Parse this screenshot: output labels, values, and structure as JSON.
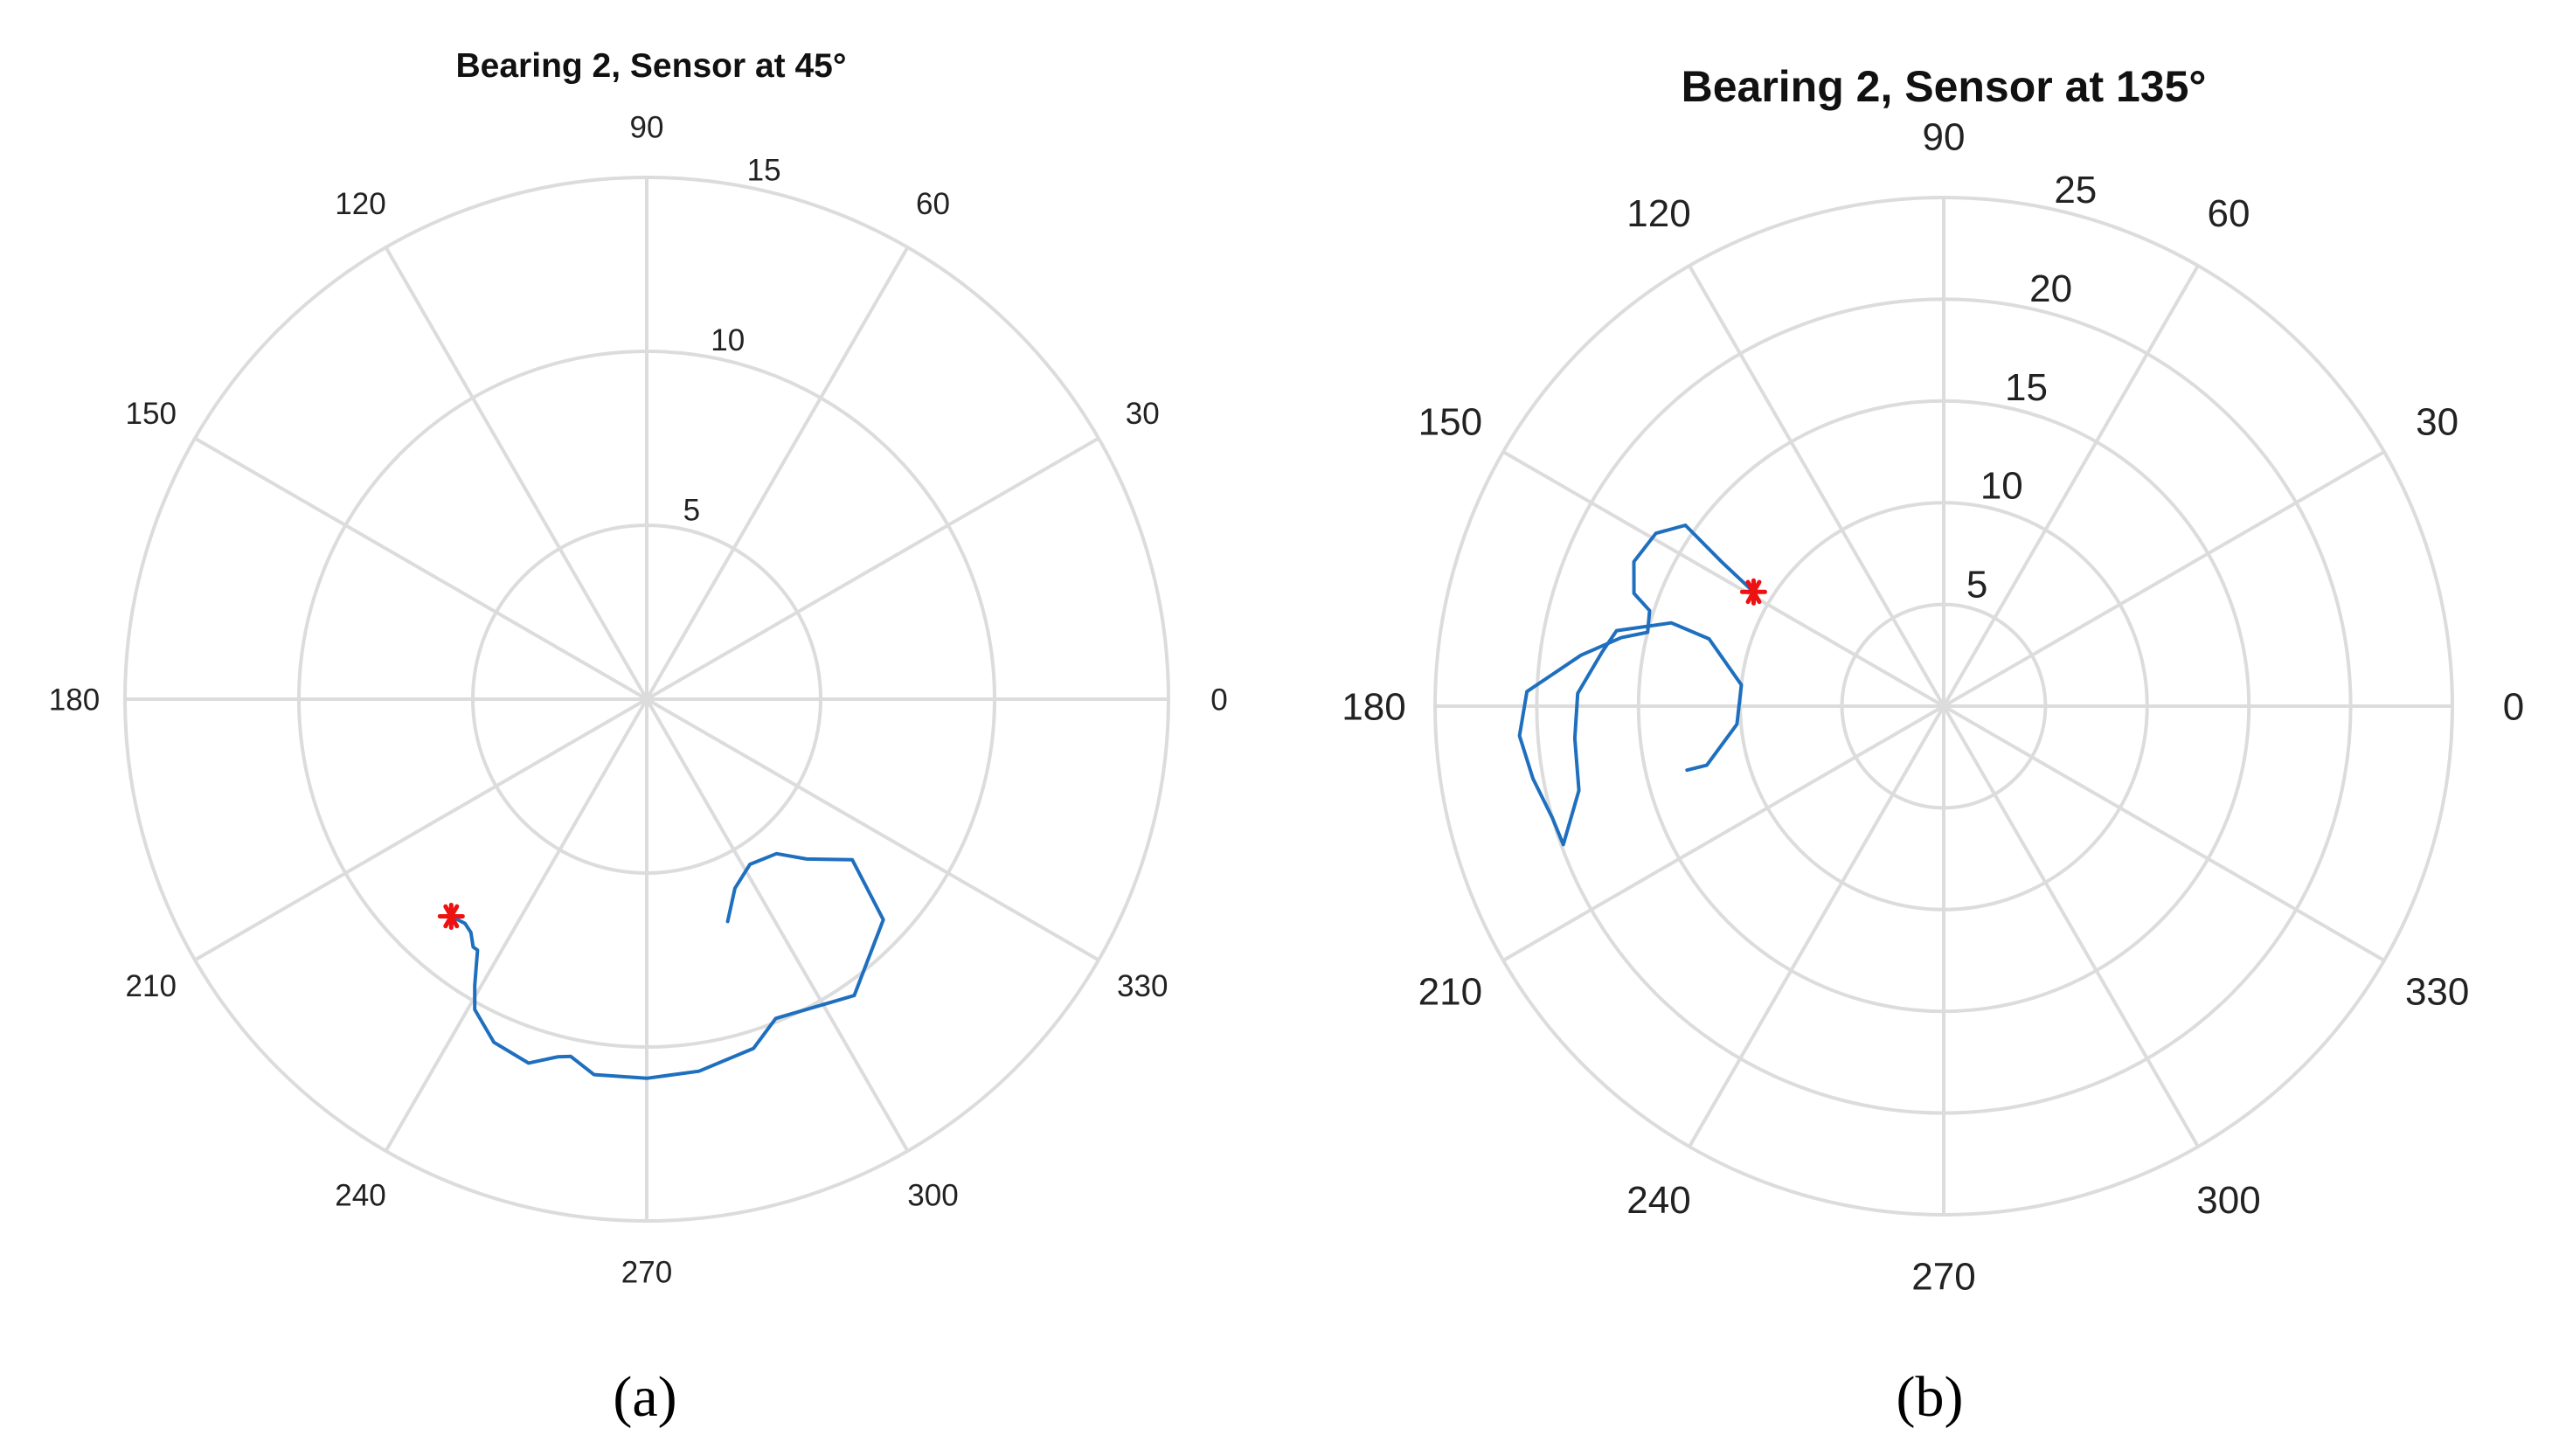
{
  "chart_data": [
    {
      "type": "polar-line",
      "title": "Bearing 2, Sensor at 45°",
      "panel_label": "(a)",
      "theta_ticks": [
        0,
        30,
        60,
        90,
        120,
        150,
        180,
        210,
        240,
        270,
        300,
        330
      ],
      "theta_tick_labels": [
        "0",
        "30",
        "60",
        "90",
        "120",
        "150",
        "180",
        "210",
        "240",
        "270",
        "300",
        "330"
      ],
      "r_ticks": [
        5,
        10,
        15
      ],
      "r_tick_labels": [
        "5",
        "10",
        "15"
      ],
      "rlim": [
        0,
        15
      ],
      "grid": true,
      "series": [
        {
          "color": "#1f6fbf",
          "points": [
            [
              290,
              6.8
            ],
            [
              295,
              6.0
            ],
            [
              302,
              5.6
            ],
            [
              310,
              5.8
            ],
            [
              315,
              6.5
            ],
            [
              322,
              7.5
            ],
            [
              317,
              9.3
            ],
            [
              305,
              10.4
            ],
            [
              292,
              9.9
            ],
            [
              287,
              10.5
            ],
            [
              278,
              10.8
            ],
            [
              270,
              10.9
            ],
            [
              262,
              10.9
            ],
            [
              258,
              10.5
            ],
            [
              256,
              10.6
            ],
            [
              252,
              11.0
            ],
            [
              246,
              10.8
            ],
            [
              241,
              10.2
            ],
            [
              239,
              9.6
            ],
            [
              236,
              8.7
            ],
            [
              235,
              8.7
            ],
            [
              233,
              8.4
            ],
            [
              231,
              8.3
            ],
            [
              228,
              8.4
            ]
          ]
        }
      ],
      "markers": [
        {
          "theta": 228,
          "r": 8.4,
          "color": "#ee1111",
          "symbol": "asterisk"
        }
      ]
    },
    {
      "type": "polar-line",
      "title": "Bearing 2, Sensor at 135°",
      "panel_label": "(b)",
      "theta_ticks": [
        0,
        30,
        60,
        90,
        120,
        150,
        180,
        210,
        240,
        270,
        300,
        330
      ],
      "theta_tick_labels": [
        "0",
        "30",
        "60",
        "90",
        "120",
        "150",
        "180",
        "210",
        "240",
        "270",
        "300",
        "330"
      ],
      "r_ticks": [
        5,
        10,
        15,
        20,
        25
      ],
      "r_tick_labels": [
        "5",
        "10",
        "15",
        "20",
        "25"
      ],
      "rlim": [
        0,
        25
      ],
      "grid": true,
      "series": [
        {
          "color": "#1f6fbf",
          "points": [
            [
              149,
              10.9
            ],
            [
              147,
              13.0
            ],
            [
              145,
              15.5
            ],
            [
              149,
              16.5
            ],
            [
              155,
              16.8
            ],
            [
              160,
              16.2
            ],
            [
              162,
              15.2
            ],
            [
              166,
              15.0
            ],
            [
              168,
              16.2
            ],
            [
              172,
              18.0
            ],
            [
              178,
              20.5
            ],
            [
              184,
              20.9
            ],
            [
              190,
              20.5
            ],
            [
              196,
              20.0
            ],
            [
              200,
              19.9
            ],
            [
              193,
              18.4
            ],
            [
              185,
              18.2
            ],
            [
              178,
              18.0
            ],
            [
              171,
              17.0
            ],
            [
              167,
              16.5
            ],
            [
              163,
              14.0
            ],
            [
              164,
              12.0
            ],
            [
              174,
              10.0
            ],
            [
              185,
              10.2
            ],
            [
              194,
              12.0
            ],
            [
              194,
              13.0
            ]
          ]
        }
      ],
      "markers": [
        {
          "theta": 149,
          "r": 10.9,
          "color": "#ee1111",
          "symbol": "asterisk"
        }
      ]
    }
  ]
}
